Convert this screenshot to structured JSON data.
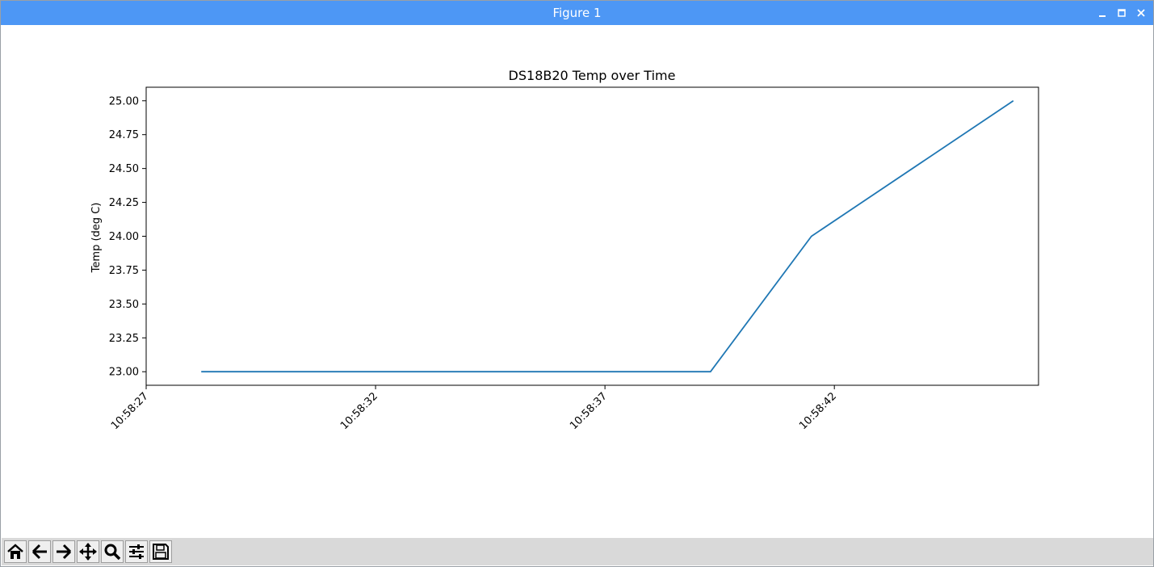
{
  "window": {
    "title": "Figure 1"
  },
  "toolbar": {
    "buttons": [
      {
        "name": "home-button",
        "icon": "home-icon"
      },
      {
        "name": "back-button",
        "icon": "arrow-left-icon"
      },
      {
        "name": "forward-button",
        "icon": "arrow-right-icon"
      },
      {
        "name": "pan-button",
        "icon": "move-icon"
      },
      {
        "name": "zoom-button",
        "icon": "magnifier-icon"
      },
      {
        "name": "configure-subplots-button",
        "icon": "sliders-icon"
      },
      {
        "name": "save-button",
        "icon": "floppy-disk-icon"
      }
    ]
  },
  "chart_data": {
    "type": "line",
    "title": "DS18B20 Temp over Time",
    "xlabel": "",
    "ylabel": "Temp (deg C)",
    "x": [
      "10:58:28.2",
      "10:58:39.3",
      "10:58:41.5",
      "10:58:45.9"
    ],
    "y": [
      23.0,
      23.0,
      24.0,
      25.0
    ],
    "xlim": [
      "10:58:27.0",
      "10:58:46.45"
    ],
    "ylim": [
      22.9,
      25.1
    ],
    "xticks": [
      "10:58:27",
      "10:58:32",
      "10:58:37",
      "10:58:42"
    ],
    "yticks": [
      "23.00",
      "23.25",
      "23.50",
      "23.75",
      "24.00",
      "24.25",
      "24.50",
      "24.75",
      "25.00"
    ],
    "line_color": "#1f77b4",
    "grid": false,
    "legend": "none"
  }
}
